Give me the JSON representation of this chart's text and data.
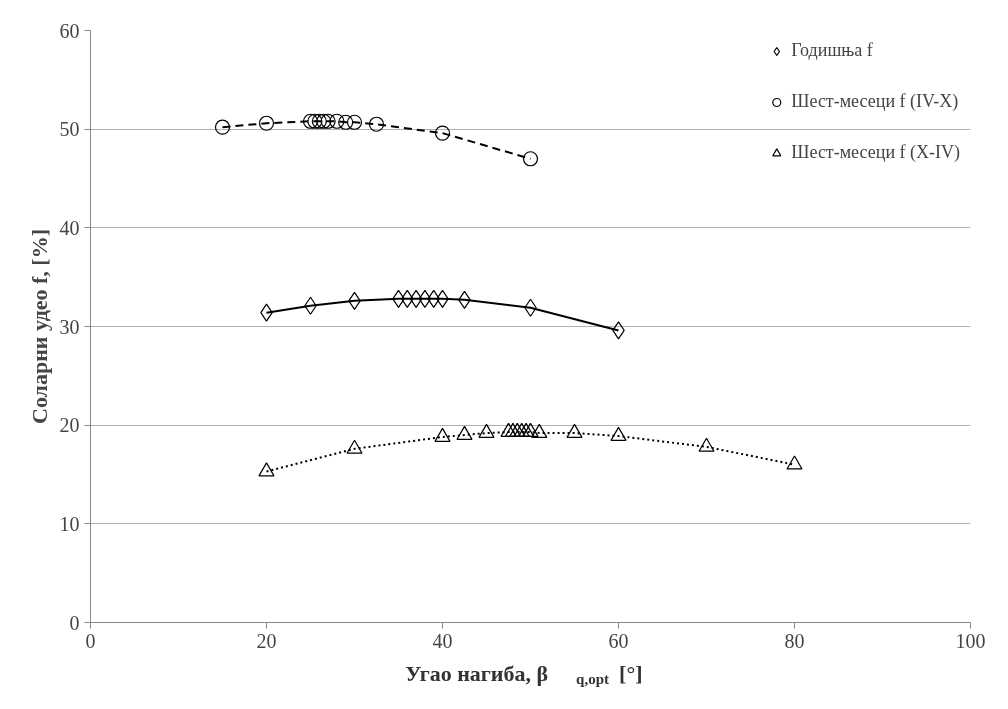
{
  "chart_data": {
    "type": "line",
    "xlabel": "Угао нагиба, β$_{q,opt}$[°]",
    "ylabel": "Соларни удео f, [%]",
    "xlim": [
      0,
      100
    ],
    "ylim": [
      0,
      60
    ],
    "xticks": [
      0,
      20,
      40,
      60,
      80,
      100
    ],
    "yticks": [
      0,
      10,
      20,
      30,
      40,
      50,
      60
    ],
    "grid": "y",
    "legend": "top right",
    "series": [
      {
        "name": "Годишња f",
        "color": "#000000",
        "marker": "diamond",
        "line_style": "solid",
        "x": [
          20,
          25,
          30,
          35,
          36,
          37,
          38,
          39,
          40,
          42.5,
          50,
          60
        ],
        "values": [
          31.4,
          32.1,
          32.6,
          32.8,
          32.8,
          32.8,
          32.8,
          32.8,
          32.8,
          32.7,
          31.9,
          29.6
        ]
      },
      {
        "name": "Шест-месеци f (IV-X)",
        "color": "#000000",
        "marker": "circle",
        "line_style": "dashed",
        "x": [
          15,
          20,
          25,
          25.5,
          26,
          26.5,
          27,
          28,
          29,
          30,
          32.5,
          40,
          50
        ],
        "values": [
          50.2,
          50.6,
          50.8,
          50.8,
          50.8,
          50.8,
          50.8,
          50.8,
          50.7,
          50.7,
          50.5,
          49.6,
          47.0
        ]
      },
      {
        "name": "Шест-месеци f (X-IV)",
        "color": "#000000",
        "marker": "triangle",
        "line_style": "dotted",
        "x": [
          20,
          30,
          40,
          42.5,
          45,
          47.5,
          48,
          48.5,
          49,
          49.5,
          50,
          51,
          55,
          60,
          70,
          80
        ],
        "values": [
          15.3,
          17.6,
          18.8,
          19.0,
          19.2,
          19.3,
          19.3,
          19.3,
          19.3,
          19.3,
          19.3,
          19.2,
          19.2,
          18.9,
          17.8,
          16.0
        ]
      }
    ]
  }
}
